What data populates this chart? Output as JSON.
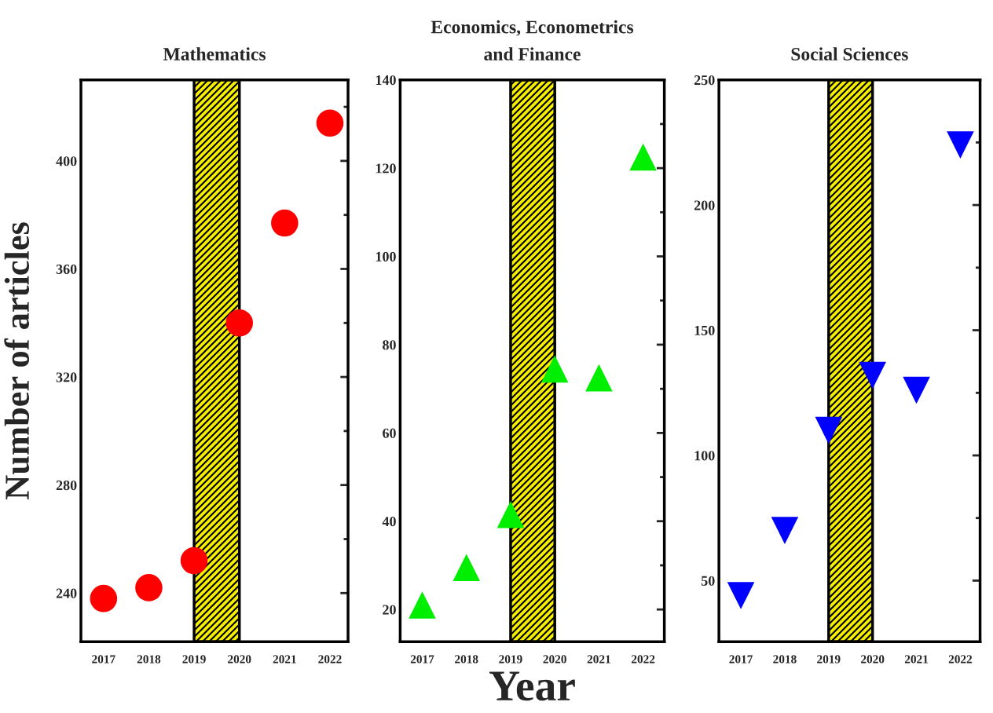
{
  "chart_data": [
    {
      "type": "scatter",
      "title": "Mathematics",
      "ylabel": "Number of articles",
      "marker": "circle",
      "grid": false,
      "legend": false,
      "x": [
        2017,
        2018,
        2019,
        2020,
        2021,
        2022
      ],
      "xlim": [
        2016.5,
        2022.4
      ],
      "xticks": [
        2017,
        2018,
        2019,
        2020,
        2021,
        2022
      ],
      "ylim": [
        222,
        430
      ],
      "yticks": [
        240,
        280,
        320,
        360,
        400
      ],
      "series": [
        {
          "color": "#ff0000",
          "values": [
            238,
            242,
            252,
            340,
            377,
            414
          ]
        }
      ],
      "bands": [
        {
          "axis": "x",
          "from": 2019,
          "to": 2020,
          "color": "#f5ee00"
        }
      ]
    },
    {
      "type": "scatter",
      "title": "Economics, Econometrics\nand Finance",
      "xlabel": "Year",
      "marker": "triangle",
      "grid": false,
      "legend": false,
      "x": [
        2017,
        2018,
        2019,
        2020,
        2021,
        2022
      ],
      "xlim": [
        2016.5,
        2022.48
      ],
      "xticks": [
        2017,
        2018,
        2019,
        2020,
        2021,
        2022
      ],
      "ylim": [
        12.7,
        140
      ],
      "yticks": [
        20,
        40,
        60,
        80,
        100,
        120,
        140
      ],
      "series": [
        {
          "color": "#00ee00",
          "values": [
            21,
            29.5,
            41.5,
            74.5,
            72.5,
            122.5
          ]
        }
      ],
      "bands": [
        {
          "axis": "x",
          "from": 2019,
          "to": 2020,
          "color": "#f5ee00"
        }
      ]
    },
    {
      "type": "scatter",
      "title": "Social Sciences",
      "marker": "triangle_down",
      "grid": false,
      "legend": false,
      "x": [
        2017,
        2018,
        2019,
        2020,
        2021,
        2022
      ],
      "xlim": [
        2016.5,
        2022.45
      ],
      "xticks": [
        2017,
        2018,
        2019,
        2020,
        2021,
        2022
      ],
      "ylim": [
        25.6,
        250
      ],
      "yticks": [
        50,
        100,
        150,
        200,
        250
      ],
      "series": [
        {
          "color": "#0000ff",
          "values": [
            44,
            70,
            110,
            132,
            126,
            224
          ]
        }
      ],
      "bands": [
        {
          "axis": "x",
          "from": 2019,
          "to": 2020,
          "color": "#f5ee00"
        }
      ]
    }
  ]
}
